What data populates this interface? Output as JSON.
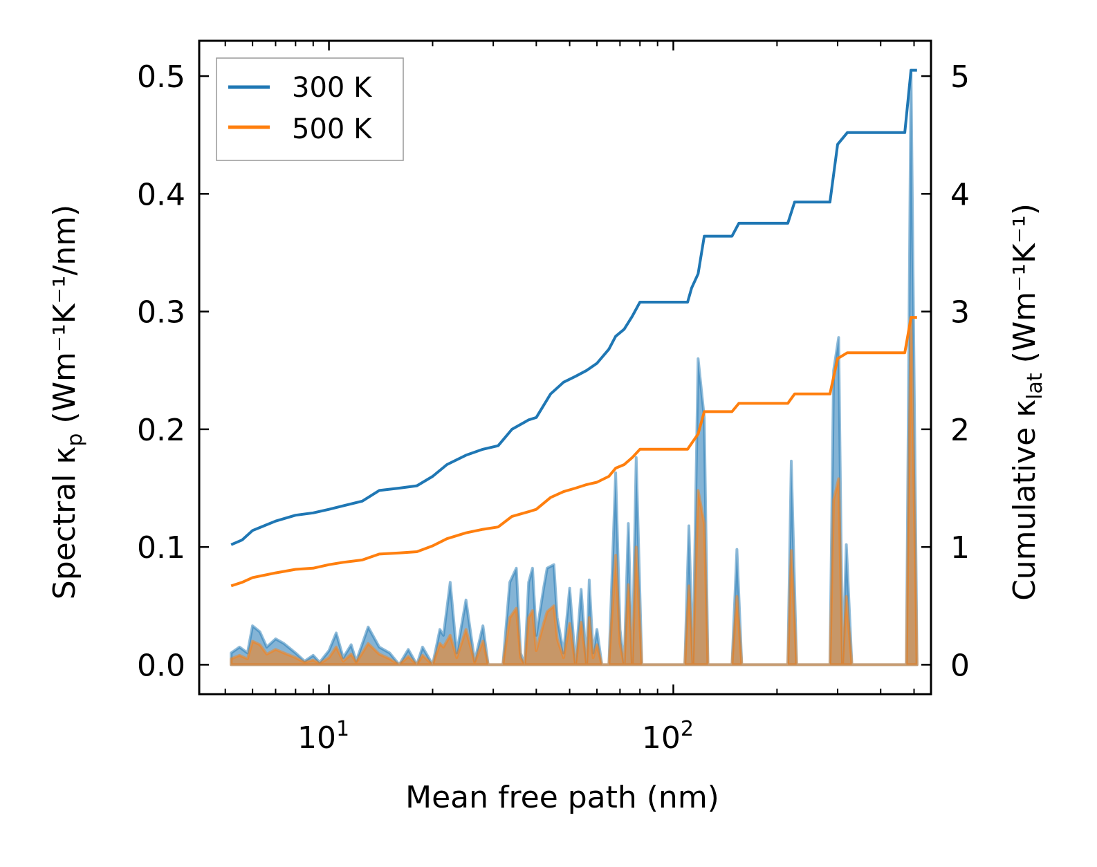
{
  "chart_data": {
    "type": "line",
    "x_scale": "log",
    "xlim": [
      4.2,
      560
    ],
    "ylim_left": [
      -0.025,
      0.53
    ],
    "ylim_right": [
      -0.25,
      5.3
    ],
    "xlabel": "Mean free path (nm)",
    "ylabel_left_main": "Spectral κ",
    "ylabel_left_sub": "p",
    "ylabel_left_unit": "(Wm⁻¹K⁻¹/nm)",
    "ylabel_right_main": "Cumulative κ",
    "ylabel_right_sub": "lat",
    "ylabel_right_unit": "(Wm⁻¹K⁻¹)",
    "x_ticks": [
      {
        "value": 10,
        "base": "10",
        "exp": "1"
      },
      {
        "value": 100,
        "base": "10",
        "exp": "2"
      }
    ],
    "y_ticks_left": [
      {
        "value": 0.0,
        "label": "0.0"
      },
      {
        "value": 0.1,
        "label": "0.1"
      },
      {
        "value": 0.2,
        "label": "0.2"
      },
      {
        "value": 0.3,
        "label": "0.3"
      },
      {
        "value": 0.4,
        "label": "0.4"
      },
      {
        "value": 0.5,
        "label": "0.5"
      }
    ],
    "y_ticks_right": [
      {
        "value": 0,
        "label": "0"
      },
      {
        "value": 1,
        "label": "1"
      },
      {
        "value": 2,
        "label": "2"
      },
      {
        "value": 3,
        "label": "3"
      },
      {
        "value": 4,
        "label": "4"
      },
      {
        "value": 5,
        "label": "5"
      }
    ],
    "legend": {
      "position": "top-left",
      "entries": [
        "300 K",
        "500 K"
      ]
    },
    "series": [
      {
        "name": "300 K",
        "color": "#1f77b4",
        "cumulative": [
          [
            5.2,
            1.02
          ],
          [
            5.6,
            1.06
          ],
          [
            6,
            1.14
          ],
          [
            7,
            1.22
          ],
          [
            8,
            1.27
          ],
          [
            9,
            1.29
          ],
          [
            10,
            1.32
          ],
          [
            11,
            1.35
          ],
          [
            12.5,
            1.39
          ],
          [
            14,
            1.48
          ],
          [
            16,
            1.5
          ],
          [
            18,
            1.52
          ],
          [
            20,
            1.6
          ],
          [
            22,
            1.7
          ],
          [
            25,
            1.78
          ],
          [
            28,
            1.83
          ],
          [
            31,
            1.86
          ],
          [
            34,
            2.0
          ],
          [
            38,
            2.08
          ],
          [
            40,
            2.1
          ],
          [
            44,
            2.3
          ],
          [
            48,
            2.4
          ],
          [
            52,
            2.45
          ],
          [
            56,
            2.5
          ],
          [
            60,
            2.56
          ],
          [
            65,
            2.68
          ],
          [
            68,
            2.79
          ],
          [
            72,
            2.85
          ],
          [
            76,
            2.96
          ],
          [
            80,
            3.08
          ],
          [
            110,
            3.08
          ],
          [
            113,
            3.2
          ],
          [
            118,
            3.32
          ],
          [
            123,
            3.64
          ],
          [
            148,
            3.64
          ],
          [
            155,
            3.75
          ],
          [
            215,
            3.75
          ],
          [
            225,
            3.93
          ],
          [
            285,
            3.93
          ],
          [
            300,
            4.42
          ],
          [
            320,
            4.52
          ],
          [
            470,
            4.52
          ],
          [
            490,
            5.05
          ],
          [
            510,
            5.05
          ]
        ],
        "spectral": [
          [
            5.2,
            0.01
          ],
          [
            5.5,
            0.015
          ],
          [
            5.8,
            0.01
          ],
          [
            6,
            0.033
          ],
          [
            6.3,
            0.028
          ],
          [
            6.6,
            0.015
          ],
          [
            7,
            0.022
          ],
          [
            7.4,
            0.018
          ],
          [
            8,
            0.01
          ],
          [
            8.5,
            0.003
          ],
          [
            9,
            0.008
          ],
          [
            9.4,
            0.002
          ],
          [
            10,
            0.012
          ],
          [
            10.5,
            0.027
          ],
          [
            11,
            0.006
          ],
          [
            11.6,
            0.017
          ],
          [
            12,
            0.003
          ],
          [
            13,
            0.032
          ],
          [
            14,
            0.015
          ],
          [
            15,
            0.01
          ],
          [
            16,
            0.0
          ],
          [
            17,
            0.013
          ],
          [
            18,
            0.0
          ],
          [
            18.7,
            0.015
          ],
          [
            20,
            0.0
          ],
          [
            21,
            0.03
          ],
          [
            21.5,
            0.025
          ],
          [
            22.5,
            0.07
          ],
          [
            23.5,
            0.01
          ],
          [
            25,
            0.055
          ],
          [
            26.5,
            0.003
          ],
          [
            28,
            0.033
          ],
          [
            29,
            0.0
          ],
          [
            32,
            0.0
          ],
          [
            33.5,
            0.07
          ],
          [
            35,
            0.082
          ],
          [
            36,
            0.01
          ],
          [
            37,
            0.0
          ],
          [
            38,
            0.07
          ],
          [
            39,
            0.082
          ],
          [
            40,
            0.025
          ],
          [
            42,
            0.065
          ],
          [
            43,
            0.082
          ],
          [
            45,
            0.085
          ],
          [
            46,
            0.04
          ],
          [
            48,
            0.01
          ],
          [
            50,
            0.065
          ],
          [
            52,
            0.0
          ],
          [
            54,
            0.064
          ],
          [
            56,
            0.0
          ],
          [
            57,
            0.072
          ],
          [
            58.5,
            0.01
          ],
          [
            60,
            0.03
          ],
          [
            62,
            0.0
          ],
          [
            65,
            0.0
          ],
          [
            68,
            0.163
          ],
          [
            70,
            0.03
          ],
          [
            72,
            0.0
          ],
          [
            74,
            0.12
          ],
          [
            76,
            0.0
          ],
          [
            78,
            0.176
          ],
          [
            81,
            0.0
          ],
          [
            108,
            0.0
          ],
          [
            111,
            0.118
          ],
          [
            114,
            0.0
          ],
          [
            118,
            0.26
          ],
          [
            123,
            0.21
          ],
          [
            126,
            0.0
          ],
          [
            148,
            0.0
          ],
          [
            153,
            0.098
          ],
          [
            158,
            0.0
          ],
          [
            215,
            0.0
          ],
          [
            220,
            0.173
          ],
          [
            228,
            0.0
          ],
          [
            285,
            0.0
          ],
          [
            292,
            0.25
          ],
          [
            302,
            0.278
          ],
          [
            310,
            0.0
          ],
          [
            318,
            0.102
          ],
          [
            330,
            0.0
          ],
          [
            475,
            0.0
          ],
          [
            490,
            0.505
          ],
          [
            510,
            0.0
          ]
        ]
      },
      {
        "name": "500 K",
        "color": "#ff7f0e",
        "cumulative": [
          [
            5.2,
            0.67
          ],
          [
            5.6,
            0.7
          ],
          [
            6,
            0.74
          ],
          [
            7,
            0.78
          ],
          [
            8,
            0.81
          ],
          [
            9,
            0.82
          ],
          [
            10,
            0.85
          ],
          [
            11,
            0.87
          ],
          [
            12.5,
            0.89
          ],
          [
            14,
            0.94
          ],
          [
            16,
            0.95
          ],
          [
            18,
            0.96
          ],
          [
            20,
            1.01
          ],
          [
            22,
            1.07
          ],
          [
            25,
            1.12
          ],
          [
            28,
            1.15
          ],
          [
            31,
            1.17
          ],
          [
            34,
            1.26
          ],
          [
            38,
            1.3
          ],
          [
            40,
            1.32
          ],
          [
            44,
            1.42
          ],
          [
            48,
            1.47
          ],
          [
            52,
            1.5
          ],
          [
            56,
            1.53
          ],
          [
            60,
            1.55
          ],
          [
            65,
            1.6
          ],
          [
            68,
            1.67
          ],
          [
            72,
            1.7
          ],
          [
            76,
            1.76
          ],
          [
            80,
            1.83
          ],
          [
            110,
            1.83
          ],
          [
            113,
            1.88
          ],
          [
            118,
            1.96
          ],
          [
            123,
            2.15
          ],
          [
            148,
            2.15
          ],
          [
            155,
            2.22
          ],
          [
            215,
            2.22
          ],
          [
            225,
            2.3
          ],
          [
            285,
            2.3
          ],
          [
            300,
            2.6
          ],
          [
            320,
            2.65
          ],
          [
            470,
            2.65
          ],
          [
            490,
            2.95
          ],
          [
            510,
            2.95
          ]
        ],
        "spectral": [
          [
            5.2,
            0.005
          ],
          [
            5.5,
            0.008
          ],
          [
            5.8,
            0.005
          ],
          [
            6,
            0.02
          ],
          [
            6.3,
            0.017
          ],
          [
            6.6,
            0.009
          ],
          [
            7,
            0.013
          ],
          [
            7.4,
            0.01
          ],
          [
            8,
            0.006
          ],
          [
            8.5,
            0.002
          ],
          [
            9,
            0.004
          ],
          [
            9.4,
            0.001
          ],
          [
            10,
            0.006
          ],
          [
            10.5,
            0.015
          ],
          [
            11,
            0.003
          ],
          [
            11.6,
            0.009
          ],
          [
            12,
            0.002
          ],
          [
            13,
            0.018
          ],
          [
            14,
            0.009
          ],
          [
            15,
            0.005
          ],
          [
            16,
            0.0
          ],
          [
            17,
            0.007
          ],
          [
            18,
            0.0
          ],
          [
            18.7,
            0.008
          ],
          [
            20,
            0.0
          ],
          [
            21,
            0.018
          ],
          [
            21.5,
            0.015
          ],
          [
            22.5,
            0.025
          ],
          [
            23.5,
            0.006
          ],
          [
            25,
            0.03
          ],
          [
            26.5,
            0.002
          ],
          [
            28,
            0.02
          ],
          [
            29,
            0.0
          ],
          [
            32,
            0.0
          ],
          [
            33.5,
            0.04
          ],
          [
            35,
            0.048
          ],
          [
            36,
            0.006
          ],
          [
            37,
            0.0
          ],
          [
            38,
            0.04
          ],
          [
            39,
            0.046
          ],
          [
            40,
            0.012
          ],
          [
            42,
            0.035
          ],
          [
            43,
            0.045
          ],
          [
            45,
            0.05
          ],
          [
            46,
            0.022
          ],
          [
            48,
            0.006
          ],
          [
            50,
            0.035
          ],
          [
            52,
            0.0
          ],
          [
            54,
            0.036
          ],
          [
            56,
            0.0
          ],
          [
            57,
            0.04
          ],
          [
            58.5,
            0.006
          ],
          [
            60,
            0.017
          ],
          [
            62,
            0.0
          ],
          [
            65,
            0.0
          ],
          [
            68,
            0.093
          ],
          [
            70,
            0.018
          ],
          [
            72,
            0.0
          ],
          [
            74,
            0.068
          ],
          [
            76,
            0.0
          ],
          [
            78,
            0.1
          ],
          [
            81,
            0.0
          ],
          [
            108,
            0.0
          ],
          [
            111,
            0.067
          ],
          [
            114,
            0.0
          ],
          [
            118,
            0.148
          ],
          [
            123,
            0.12
          ],
          [
            126,
            0.0
          ],
          [
            148,
            0.0
          ],
          [
            153,
            0.058
          ],
          [
            158,
            0.0
          ],
          [
            215,
            0.0
          ],
          [
            220,
            0.097
          ],
          [
            228,
            0.0
          ],
          [
            285,
            0.0
          ],
          [
            292,
            0.14
          ],
          [
            302,
            0.158
          ],
          [
            310,
            0.0
          ],
          [
            318,
            0.058
          ],
          [
            330,
            0.0
          ],
          [
            475,
            0.0
          ],
          [
            490,
            0.295
          ],
          [
            510,
            0.0
          ]
        ]
      }
    ]
  }
}
